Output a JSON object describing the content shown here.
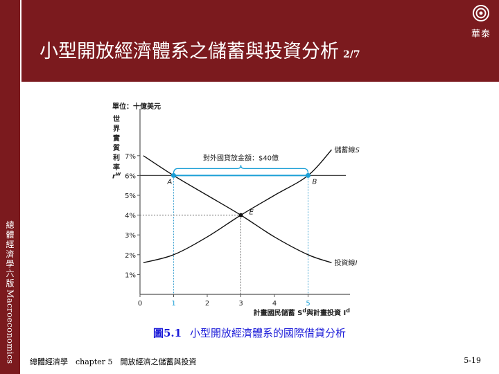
{
  "sidebar": {
    "vertical_title_cjk": [
      "總",
      "體",
      "經",
      "濟",
      "學",
      "六",
      "版"
    ],
    "vertical_title_latin": "Macroeconomics"
  },
  "header": {
    "title": "小型開放經濟體系之儲蓄與投資分析",
    "page_indicator": "2/7",
    "logo_text": "華泰"
  },
  "chart_data": {
    "type": "line",
    "y_unit_label": "單位：十億美元",
    "ylabel_vertical": [
      "世",
      "界",
      "實",
      "質",
      "利",
      "率"
    ],
    "ylabel_symbol": "r^w",
    "xlabel": "計畫國民儲蓄 S^d與計畫投資 I^d",
    "x_ticks": [
      "0",
      "1",
      "2",
      "3",
      "4",
      "5"
    ],
    "y_ticks": [
      "1%",
      "2%",
      "3%",
      "4%",
      "5%",
      "6%",
      "7%"
    ],
    "xlim": [
      0,
      6
    ],
    "ylim": [
      0,
      8
    ],
    "series": [
      {
        "name": "儲蓄線S",
        "x": [
          0.1,
          1.0,
          2.0,
          3.0,
          4.0,
          5.0,
          5.7
        ],
        "y": [
          1.6,
          2.0,
          2.9,
          4.0,
          5.0,
          6.0,
          7.3
        ]
      },
      {
        "name": "投資線I",
        "x": [
          0.1,
          1.0,
          2.0,
          3.0,
          4.0,
          5.0,
          5.7
        ],
        "y": [
          7.0,
          6.0,
          5.0,
          4.0,
          2.9,
          2.0,
          1.6
        ]
      }
    ],
    "world_rate_line": {
      "y": 6.0,
      "label": "r^w"
    },
    "points": [
      {
        "label": "A",
        "x": 1,
        "y": 6
      },
      {
        "label": "B",
        "x": 5,
        "y": 6
      },
      {
        "label": "E",
        "x": 3,
        "y": 4
      }
    ],
    "annotation": "對外國貸放金額：$40億",
    "colors": {
      "curve": "#111111",
      "world_line": "#1b9fd6",
      "guide": "#3aa0d0",
      "marker": "#1b9fd6"
    }
  },
  "caption": {
    "figure_no": "圖5.1",
    "text": "小型開放經濟體系的國際借貸分析"
  },
  "footer": {
    "left": "總體經濟學　chapter 5　開放經濟之儲蓄與投資",
    "right": "5-19"
  }
}
